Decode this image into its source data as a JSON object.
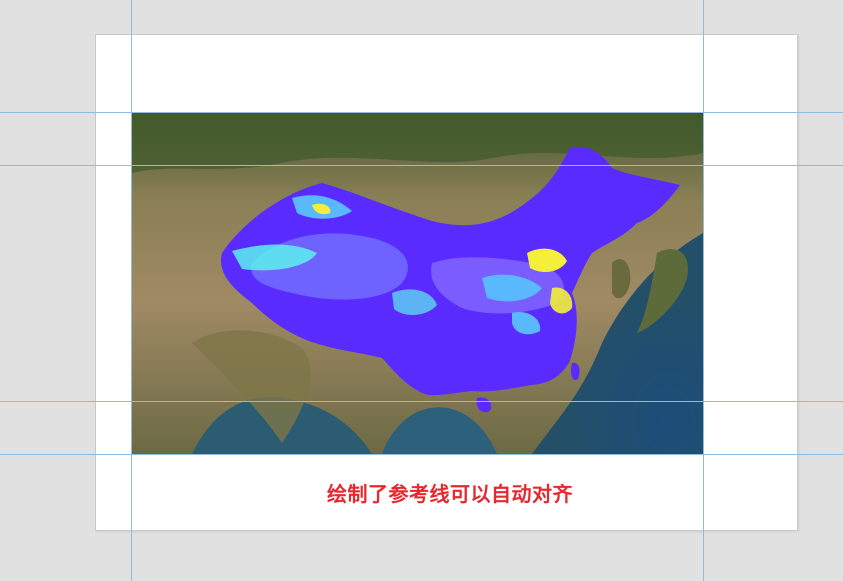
{
  "canvas": {
    "background": "#e1e1e1",
    "page_color": "#ffffff",
    "guide_color": "#8fbbdc"
  },
  "map": {
    "kind": "satellite-basemap-with-raster-overlay",
    "overlay_palette": [
      "#5a2bff",
      "#6f63ff",
      "#59b8ff",
      "#5df0f0",
      "#f3ef3a"
    ]
  },
  "caption": {
    "text": "绘制了参考线可以自动对齐",
    "color": "#e8282f"
  }
}
